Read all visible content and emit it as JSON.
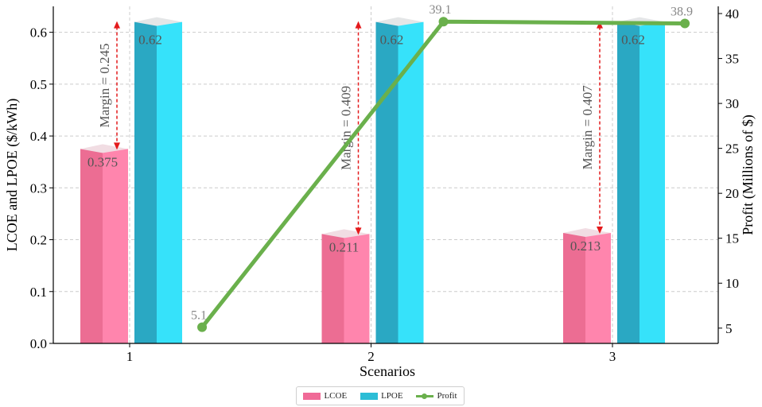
{
  "chart_data": {
    "type": "bar",
    "xlabel": "Scenarios",
    "ylabel_left": "LCOE and LPOE ($/kWh)",
    "ylabel_right": "Profit (Millions of $)",
    "categories": [
      "1",
      "2",
      "3"
    ],
    "ylim_left": [
      0,
      0.65
    ],
    "ylim_right": [
      3.3,
      40.8
    ],
    "yticks_left": [
      0.0,
      0.1,
      0.2,
      0.3,
      0.4,
      0.5,
      0.6
    ],
    "yticks_right": [
      5,
      10,
      15,
      20,
      25,
      30,
      35,
      40
    ],
    "grid": true,
    "legend_position": "bottom-center",
    "series": [
      {
        "name": "LCOE",
        "type": "bar",
        "color": "#f06a97",
        "values": [
          0.375,
          0.211,
          0.213
        ],
        "labels": [
          "0.375",
          "0.211",
          "0.213"
        ]
      },
      {
        "name": "LPOE",
        "type": "bar",
        "color": "#2cbdd6",
        "values": [
          0.62,
          0.62,
          0.62
        ],
        "labels": [
          "0.62",
          "0.62",
          "0.62"
        ]
      },
      {
        "name": "Profit",
        "type": "line",
        "axis": "right",
        "color": "#6ab04c",
        "x": [
          1.3,
          2.3,
          3.3
        ],
        "values": [
          5.1,
          39.1,
          38.9
        ],
        "labels": [
          "5.1",
          "39.1",
          "38.9"
        ]
      }
    ],
    "annotations": [
      {
        "category": "1",
        "text": "Margin = 0.245"
      },
      {
        "category": "2",
        "text": "Margin = 0.409"
      },
      {
        "category": "3",
        "text": "Margin = 0.407"
      }
    ]
  },
  "legend": {
    "lcoe": "LCOE",
    "lpoe": "LPOE",
    "profit": "Profit"
  }
}
